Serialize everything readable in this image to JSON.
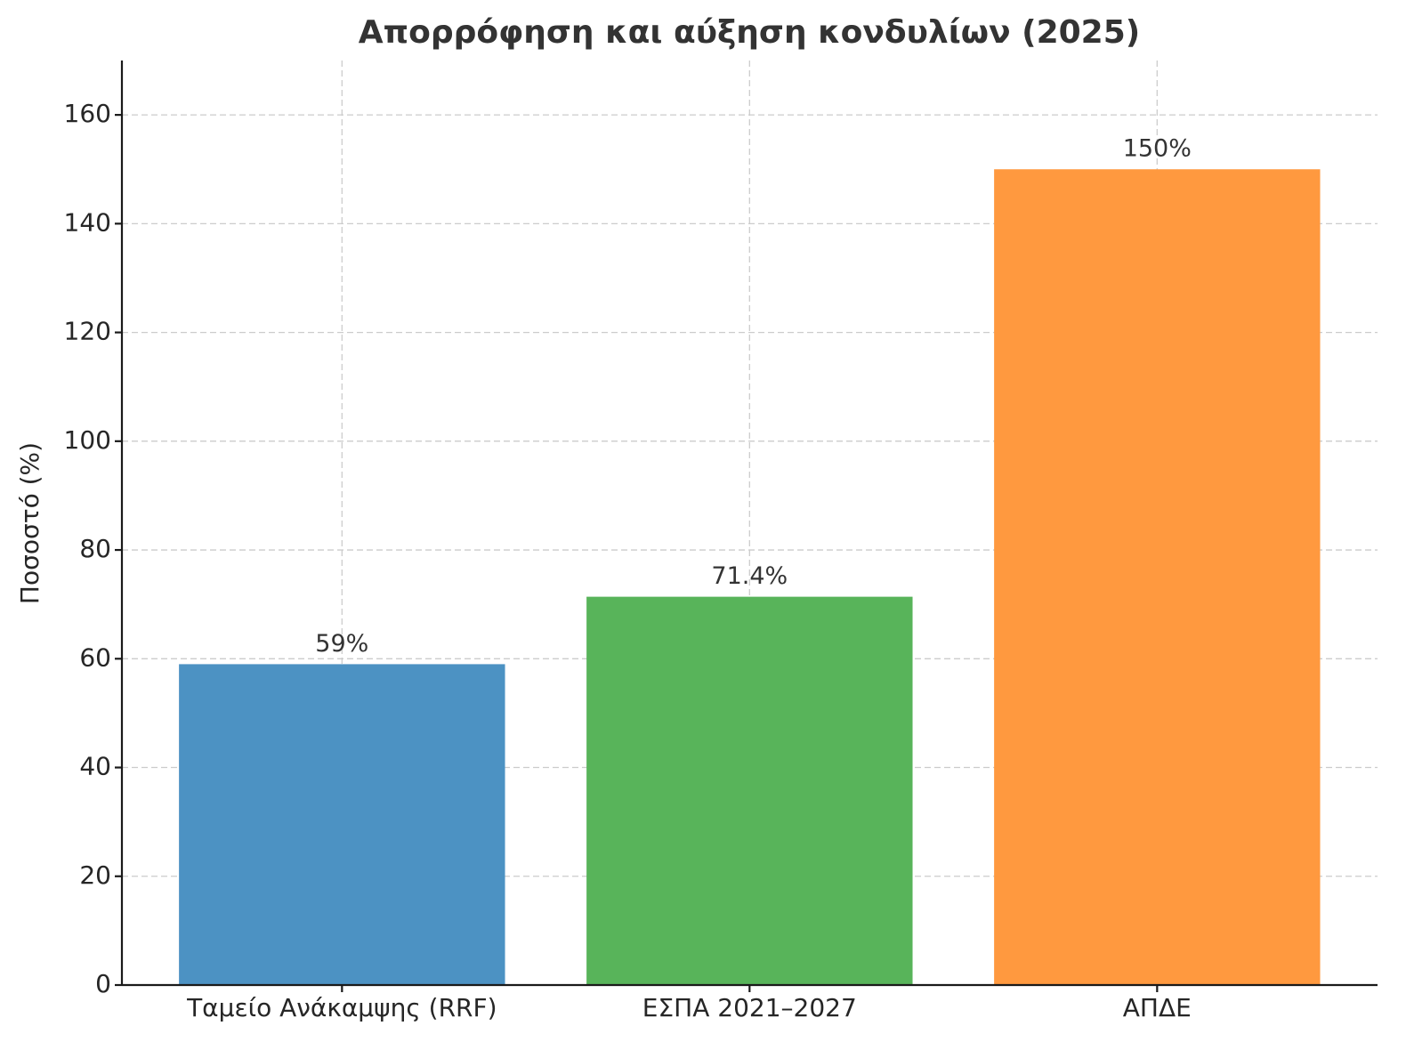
{
  "chart_data": {
    "type": "bar",
    "title": "Απορρόφηση και αύξηση κονδυλίων (2025)",
    "y_label": "Ποσοστό (%)",
    "categories": [
      "Ταμείο Ανάκαμψης (RRF)",
      "ΕΣΠΑ 2021–2027",
      "ΑΠΔΕ"
    ],
    "values": [
      59,
      71.4,
      150
    ],
    "value_labels": [
      "59%",
      "71.4%",
      "150%"
    ],
    "colors": [
      "#4c92c3",
      "#58b45a",
      "#ff993f"
    ],
    "ylim": [
      0,
      170
    ],
    "yticks": [
      0,
      20,
      40,
      60,
      80,
      100,
      120,
      140,
      160
    ],
    "grid": "both"
  }
}
